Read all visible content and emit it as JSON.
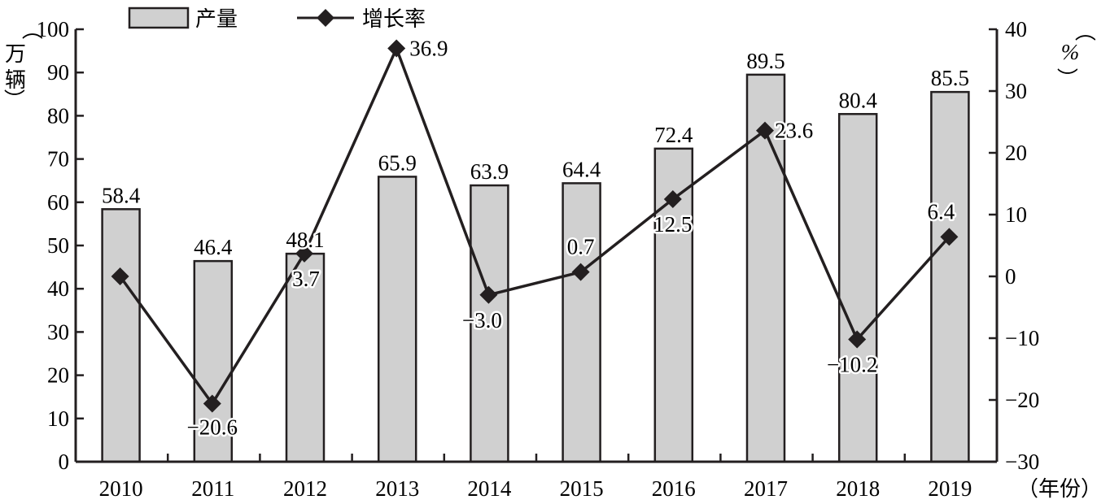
{
  "chart_data": {
    "type": "bar+line",
    "title": "",
    "categories": [
      "2010",
      "2011",
      "2012",
      "2013",
      "2014",
      "2015",
      "2016",
      "2017",
      "2018",
      "2019"
    ],
    "series": [
      {
        "name": "产量",
        "type": "bar",
        "axis": "left",
        "values": [
          58.4,
          46.4,
          48.1,
          65.9,
          63.9,
          64.4,
          72.4,
          89.5,
          80.4,
          85.5
        ],
        "labels": [
          "58.4",
          "46.4",
          "48.1",
          "65.9",
          "63.9",
          "64.4",
          "72.4",
          "89.5",
          "80.4",
          "85.5"
        ],
        "color": "#d0d0d0",
        "edge_color": "#231f20"
      },
      {
        "name": "增长率",
        "type": "line",
        "axis": "right",
        "marker": "diamond",
        "values": [
          0,
          -20.6,
          3.7,
          36.9,
          -3.0,
          0.7,
          12.5,
          23.6,
          -10.2,
          6.4
        ],
        "labels": [
          "",
          "−20.6",
          "3.7",
          "36.9",
          "−3.0",
          "0.7",
          "12.5",
          "23.6",
          "−10.2",
          "6.4"
        ],
        "color": "#231f20"
      }
    ],
    "xlabel": "（年份）",
    "ylabel_left": "（万辆）",
    "ylabel_right": "（%）",
    "ylim_left": [
      0,
      100
    ],
    "ylim_right": [
      -30,
      40
    ],
    "yticks_left": [
      "0",
      "10",
      "20",
      "30",
      "40",
      "50",
      "60",
      "70",
      "80",
      "90",
      "100"
    ],
    "yticks_right": [
      "−30",
      "−20",
      "−10",
      "0",
      "10",
      "20",
      "30",
      "40"
    ],
    "grid": false,
    "legend_position": "top"
  },
  "legend": {
    "bar_label": "产量",
    "line_label": "增长率"
  },
  "axes": {
    "left_unit_open": "（",
    "left_unit_chars": [
      "万",
      "辆"
    ],
    "left_unit_close": "）",
    "right_unit_open": "（",
    "right_unit": "%",
    "right_unit_close": "）",
    "x_unit": "（年份）"
  }
}
